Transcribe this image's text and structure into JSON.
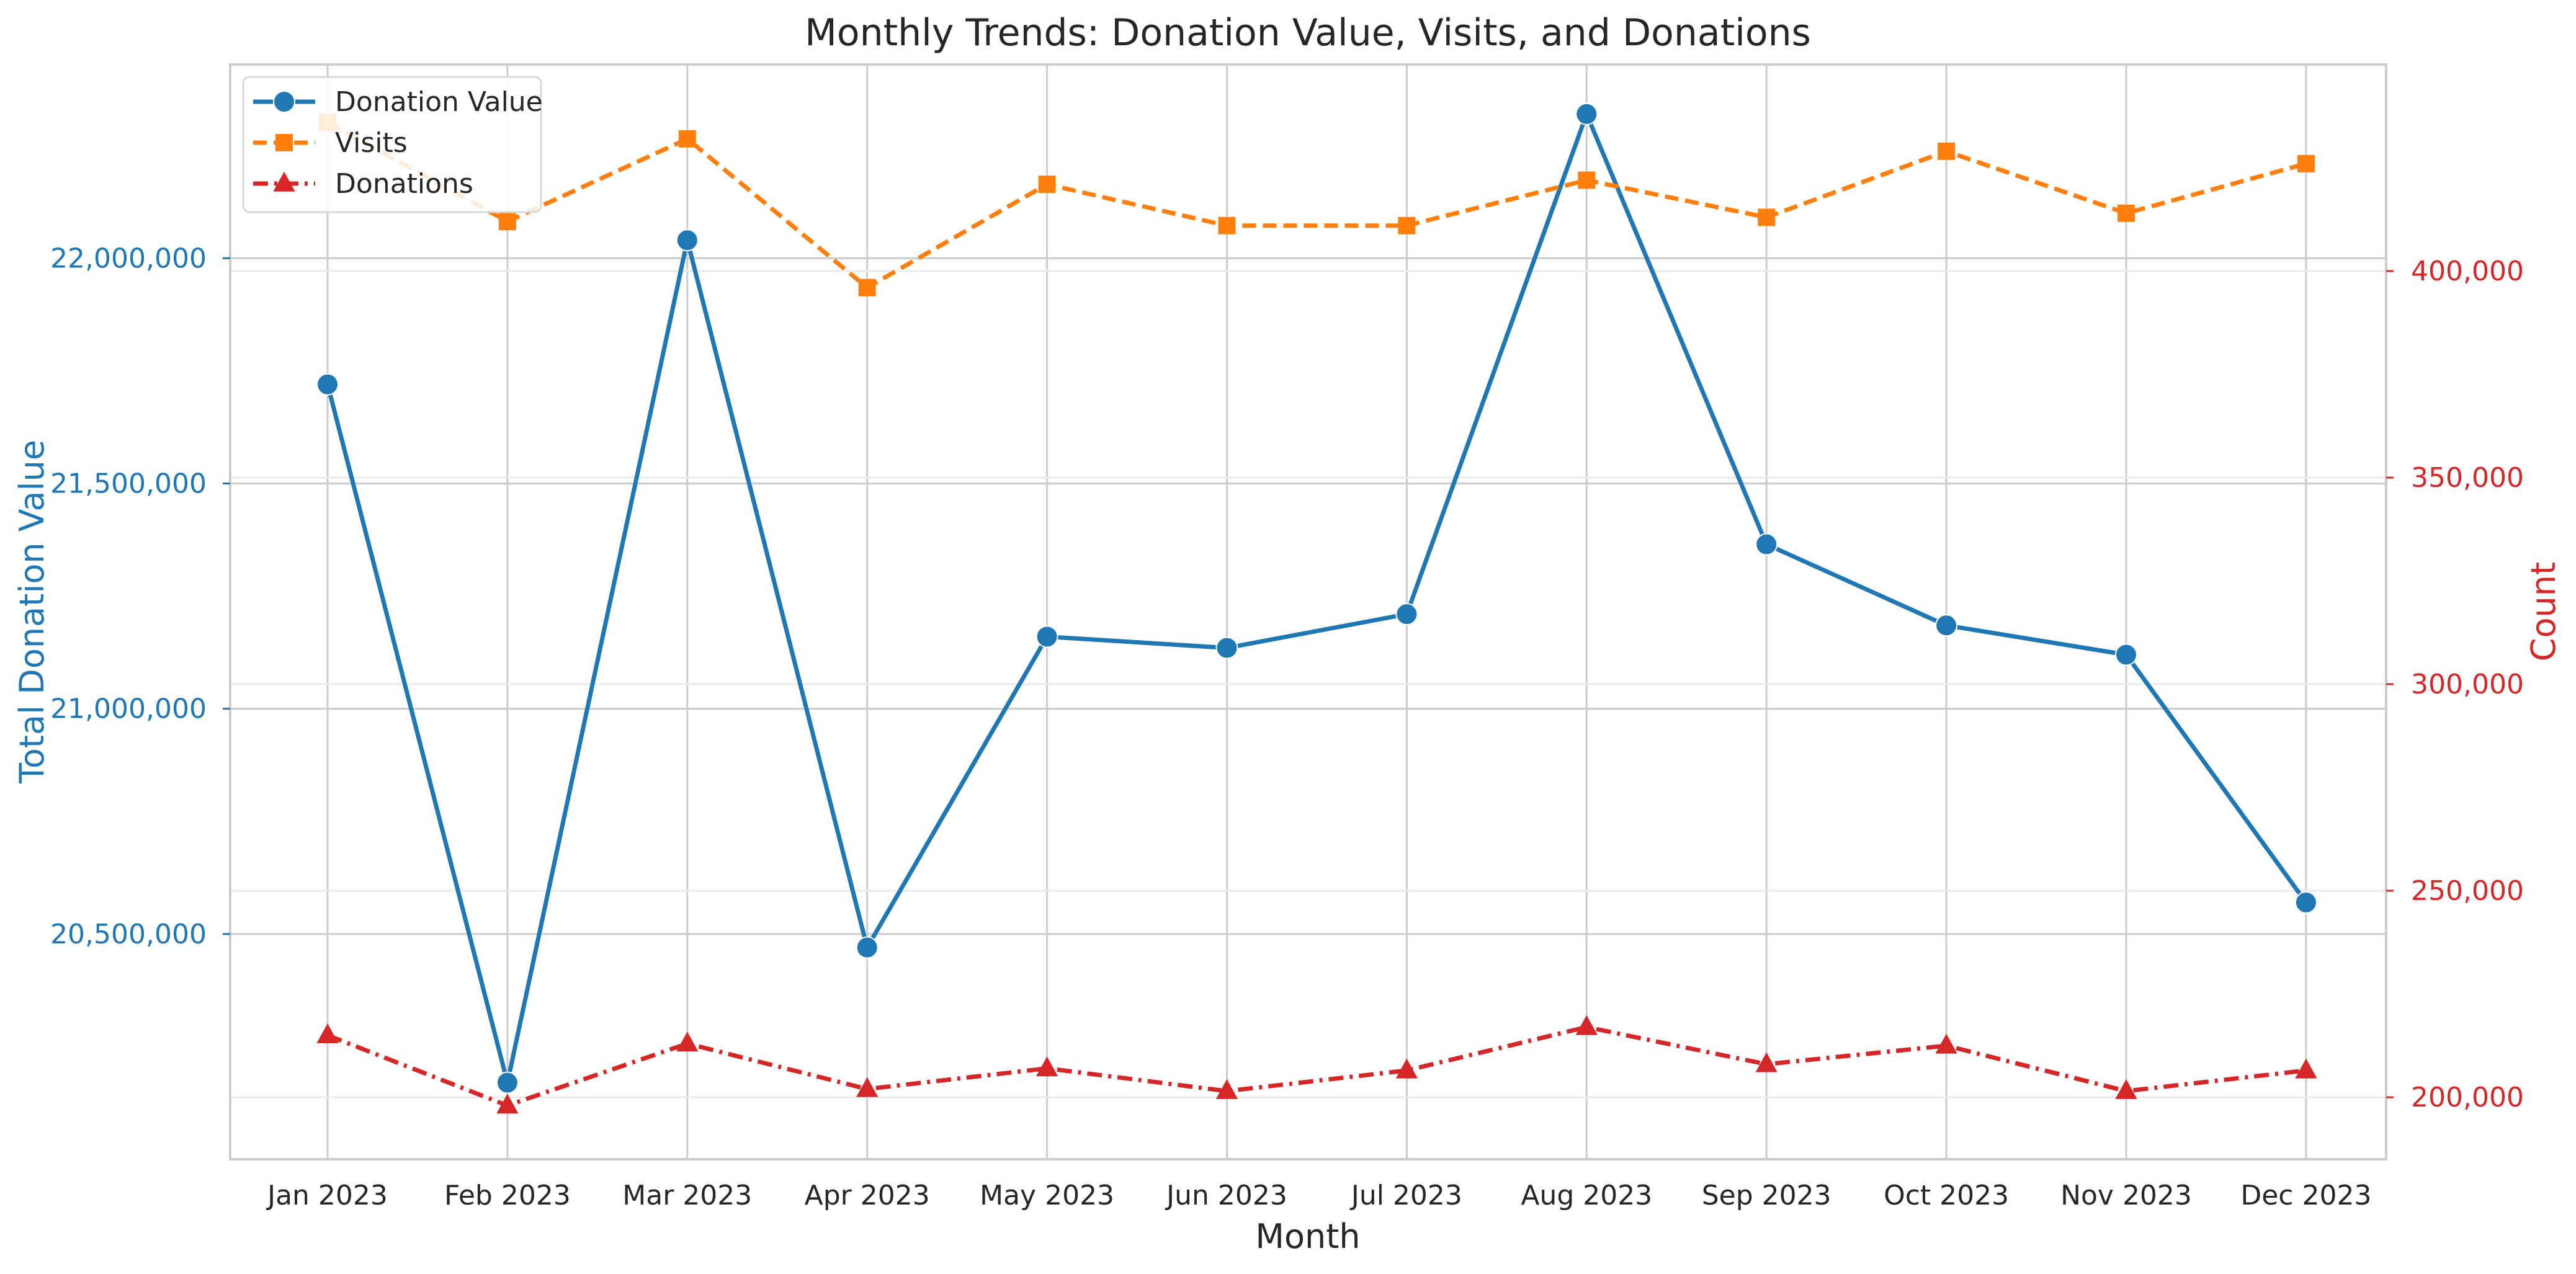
{
  "chart_data": {
    "type": "line",
    "title": "Monthly Trends: Donation Value, Visits, and Donations",
    "xlabel": "Month",
    "ylabel_left": "Total Donation Value",
    "ylabel_right": "Count",
    "categories": [
      "Jan 2023",
      "Feb 2023",
      "Mar 2023",
      "Apr 2023",
      "May 2023",
      "Jun 2023",
      "Jul 2023",
      "Aug 2023",
      "Sep 2023",
      "Oct 2023",
      "Nov 2023",
      "Dec 2023"
    ],
    "ylim_left": [
      20000000,
      22430000
    ],
    "ylim_right": [
      185000,
      450000
    ],
    "yticks_left": [
      "20,500,000",
      "21,000,000",
      "21,500,000",
      "22,000,000"
    ],
    "yticks_left_values": [
      20500000,
      21000000,
      21500000,
      22000000
    ],
    "yticks_right": [
      "200,000",
      "250,000",
      "300,000",
      "350,000",
      "400,000"
    ],
    "yticks_right_values": [
      200000,
      250000,
      300000,
      350000,
      400000
    ],
    "grid": true,
    "legend_position": "top-left",
    "colors": {
      "left_axis": "#1f77b4",
      "right_axis": "#d62728"
    },
    "series": [
      {
        "name": "Donation Value",
        "axis": "left",
        "color": "#1f77b4",
        "marker": "circle",
        "linestyle": "solid",
        "values": [
          21720000,
          20170000,
          22040000,
          20470000,
          21160000,
          21135000,
          21210000,
          22320000,
          21365000,
          21185000,
          21120000,
          20570000
        ]
      },
      {
        "name": "Visits",
        "axis": "right",
        "color": "#ff7f0e",
        "marker": "square",
        "linestyle": "dashed",
        "values": [
          436000,
          412000,
          432000,
          396000,
          421000,
          411000,
          411000,
          422000,
          413000,
          429000,
          414000,
          426000
        ]
      },
      {
        "name": "Donations",
        "axis": "right",
        "color": "#d62728",
        "marker": "triangle",
        "linestyle": "dashdot",
        "values": [
          215000,
          198000,
          213000,
          202000,
          207000,
          201500,
          206500,
          217000,
          208000,
          212500,
          201500,
          206500
        ]
      }
    ]
  }
}
